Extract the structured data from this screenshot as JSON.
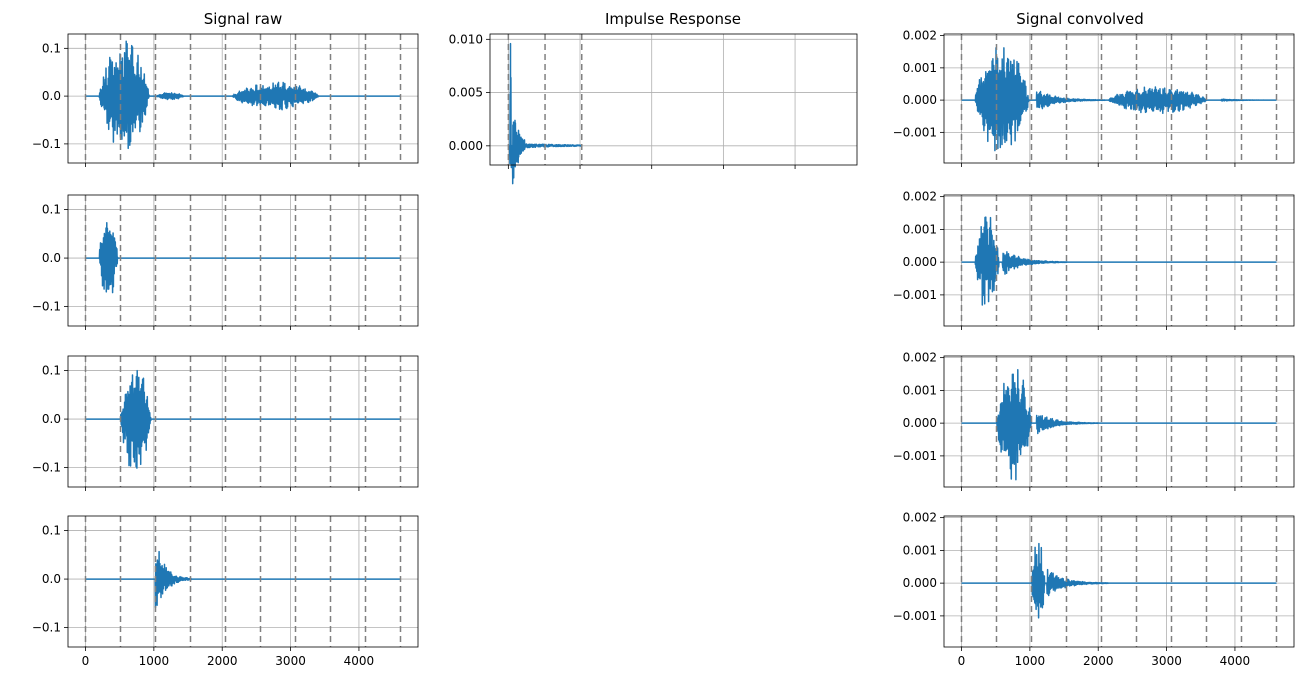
{
  "figure": {
    "titles": {
      "left": "Signal raw",
      "middle": "Impulse Response",
      "right": "Signal convolved"
    }
  },
  "colors": {
    "line": "#1f77b4",
    "grid": "#b0b0b0",
    "marker": "#808080",
    "axis": "#000000"
  },
  "chart_data": [
    {
      "id": "raw-full",
      "type": "line",
      "title": "Signal raw",
      "xlim": [
        -256,
        4864
      ],
      "ylim": [
        -0.14,
        0.13
      ],
      "xticks": [
        0,
        1000,
        2000,
        3000,
        4000
      ],
      "xtick_labels_shown": false,
      "yticks": [
        -0.1,
        0.0,
        0.1
      ],
      "ytick_labels": [
        "−0.1",
        "0.0",
        "0.1"
      ],
      "grid": true,
      "segment_boundaries": [
        0,
        512,
        1024,
        1536,
        2048,
        2560,
        3072,
        3584,
        4096,
        4608
      ],
      "x_range": [
        0,
        4608
      ],
      "bursts": [
        {
          "start": 200,
          "end": 1040,
          "amp": 0.12
        },
        {
          "start": 1040,
          "end": 1500,
          "amp": 0.008
        },
        {
          "start": 2150,
          "end": 3600,
          "amp": 0.03
        }
      ]
    },
    {
      "id": "raw-seg1",
      "type": "line",
      "xlim": [
        -256,
        4864
      ],
      "ylim": [
        -0.14,
        0.13
      ],
      "xticks": [
        0,
        1000,
        2000,
        3000,
        4000
      ],
      "xtick_labels_shown": false,
      "yticks": [
        -0.1,
        0.0,
        0.1
      ],
      "ytick_labels": [
        "−0.1",
        "0.0",
        "0.1"
      ],
      "grid": true,
      "segment_boundaries": [
        0,
        512,
        1024,
        1536,
        2048,
        2560,
        3072,
        3584,
        4096,
        4608
      ],
      "x_range": [
        0,
        4608
      ],
      "bursts": [
        {
          "start": 200,
          "end": 512,
          "amp": 0.1
        }
      ]
    },
    {
      "id": "raw-seg2",
      "type": "line",
      "xlim": [
        -256,
        4864
      ],
      "ylim": [
        -0.14,
        0.13
      ],
      "xticks": [
        0,
        1000,
        2000,
        3000,
        4000
      ],
      "xtick_labels_shown": false,
      "yticks": [
        -0.1,
        0.0,
        0.1
      ],
      "ytick_labels": [
        "−0.1",
        "0.0",
        "0.1"
      ],
      "grid": true,
      "segment_boundaries": [
        0,
        512,
        1024,
        1536,
        2048,
        2560,
        3072,
        3584,
        4096,
        4608
      ],
      "x_range": [
        0,
        4608
      ],
      "bursts": [
        {
          "start": 512,
          "end": 1024,
          "amp": 0.12
        }
      ]
    },
    {
      "id": "raw-seg3",
      "type": "line",
      "xlim": [
        -256,
        4864
      ],
      "ylim": [
        -0.14,
        0.13
      ],
      "xticks": [
        0,
        1000,
        2000,
        3000,
        4000
      ],
      "xtick_labels": [
        "0",
        "1000",
        "2000",
        "3000",
        "4000"
      ],
      "xtick_labels_shown": true,
      "yticks": [
        -0.1,
        0.0,
        0.1
      ],
      "ytick_labels": [
        "−0.1",
        "0.0",
        "0.1"
      ],
      "grid": true,
      "segment_boundaries": [
        0,
        512,
        1024,
        1536,
        2048,
        2560,
        3072,
        3584,
        4096,
        4608
      ],
      "x_range": [
        0,
        4608
      ],
      "bursts": [
        {
          "start": 1024,
          "end": 1550,
          "amp": 0.09,
          "decay": true
        }
      ]
    },
    {
      "id": "impulse-response",
      "type": "line",
      "title": "Impulse Response",
      "xlim": [
        -256,
        4864
      ],
      "ylim": [
        -0.0018,
        0.0105
      ],
      "xticks": [
        0,
        1000,
        2000,
        3000,
        4000
      ],
      "xtick_labels_shown": false,
      "yticks": [
        0.0,
        0.005,
        0.01
      ],
      "ytick_labels": [
        "0.000",
        "0.005",
        "0.010"
      ],
      "grid": true,
      "segment_boundaries": [
        0,
        512,
        1024
      ],
      "x_range": [
        0,
        1024
      ],
      "peak": {
        "x": 30,
        "y": 0.0096
      },
      "min": {
        "x": 60,
        "y": -0.0031
      }
    },
    {
      "id": "conv-full",
      "type": "line",
      "title": "Signal convolved",
      "xlim": [
        -256,
        4864
      ],
      "ylim": [
        -0.00195,
        0.00205
      ],
      "xticks": [
        0,
        1000,
        2000,
        3000,
        4000
      ],
      "xtick_labels_shown": false,
      "yticks": [
        -0.001,
        0.0,
        0.001,
        0.002
      ],
      "ytick_labels": [
        "−0.001",
        "0.000",
        "0.001",
        "0.002"
      ],
      "grid": true,
      "segment_boundaries": [
        0,
        512,
        1024,
        1536,
        2048,
        2560,
        3072,
        3584,
        4096,
        4608
      ],
      "x_range": [
        0,
        4608
      ],
      "bursts": [
        {
          "start": 200,
          "end": 1100,
          "amp": 0.0018
        },
        {
          "start": 1100,
          "end": 2100,
          "amp": 0.0004,
          "decay": true
        },
        {
          "start": 2150,
          "end": 3800,
          "amp": 0.00045
        },
        {
          "start": 3800,
          "end": 4600,
          "amp": 4e-05,
          "decay": true
        }
      ]
    },
    {
      "id": "conv-seg1",
      "type": "line",
      "xlim": [
        -256,
        4864
      ],
      "ylim": [
        -0.00195,
        0.00205
      ],
      "xticks": [
        0,
        1000,
        2000,
        3000,
        4000
      ],
      "xtick_labels_shown": false,
      "yticks": [
        -0.001,
        0.0,
        0.001,
        0.002
      ],
      "ytick_labels": [
        "−0.001",
        "0.000",
        "0.001",
        "0.002"
      ],
      "grid": true,
      "segment_boundaries": [
        0,
        512,
        1024,
        1536,
        2048,
        2560,
        3072,
        3584,
        4096,
        4608
      ],
      "x_range": [
        0,
        4608
      ],
      "bursts": [
        {
          "start": 200,
          "end": 600,
          "amp": 0.0016
        },
        {
          "start": 600,
          "end": 1550,
          "amp": 0.0005,
          "decay": true
        }
      ]
    },
    {
      "id": "conv-seg2",
      "type": "line",
      "xlim": [
        -256,
        4864
      ],
      "ylim": [
        -0.00195,
        0.00205
      ],
      "xticks": [
        0,
        1000,
        2000,
        3000,
        4000
      ],
      "xtick_labels_shown": false,
      "yticks": [
        -0.001,
        0.0,
        0.001,
        0.002
      ],
      "ytick_labels": [
        "−0.001",
        "0.000",
        "0.001",
        "0.002"
      ],
      "grid": true,
      "segment_boundaries": [
        0,
        512,
        1024,
        1536,
        2048,
        2560,
        3072,
        3584,
        4096,
        4608
      ],
      "x_range": [
        0,
        4608
      ],
      "bursts": [
        {
          "start": 512,
          "end": 1100,
          "amp": 0.0018
        },
        {
          "start": 1100,
          "end": 2000,
          "amp": 0.0004,
          "decay": true
        }
      ]
    },
    {
      "id": "conv-seg3",
      "type": "line",
      "xlim": [
        -256,
        4864
      ],
      "ylim": [
        -0.00195,
        0.00205
      ],
      "xticks": [
        0,
        1000,
        2000,
        3000,
        4000
      ],
      "xtick_labels": [
        "0",
        "1000",
        "2000",
        "3000",
        "4000"
      ],
      "xtick_labels_shown": true,
      "yticks": [
        -0.001,
        0.0,
        0.001,
        0.002
      ],
      "ytick_labels": [
        "−0.001",
        "0.000",
        "0.001",
        "0.002"
      ],
      "grid": true,
      "segment_boundaries": [
        0,
        512,
        1024,
        1536,
        2048,
        2560,
        3072,
        3584,
        4096,
        4608
      ],
      "x_range": [
        0,
        4608
      ],
      "bursts": [
        {
          "start": 1024,
          "end": 1250,
          "amp": 0.0014
        },
        {
          "start": 1250,
          "end": 2150,
          "amp": 0.0005,
          "decay": true
        }
      ]
    }
  ]
}
